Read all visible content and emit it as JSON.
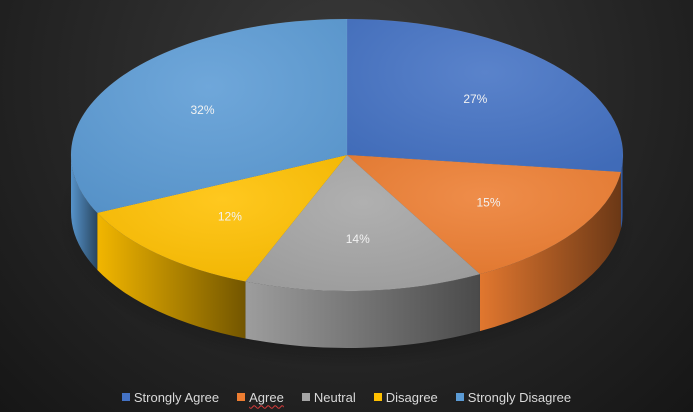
{
  "chart_data": {
    "type": "pie",
    "title": "",
    "categories": [
      "Strongly Agree",
      "Agree",
      "Neutral",
      "Disagree",
      "Strongly Disagree"
    ],
    "values": [
      27,
      15,
      14,
      12,
      32
    ],
    "labels": [
      "27%",
      "15%",
      "14%",
      "12%",
      "32%"
    ],
    "colors": [
      "#4472C4",
      "#ED7D31",
      "#A5A5A5",
      "#FFC000",
      "#5B9BD5"
    ],
    "legend_position": "bottom",
    "style": "3d"
  }
}
